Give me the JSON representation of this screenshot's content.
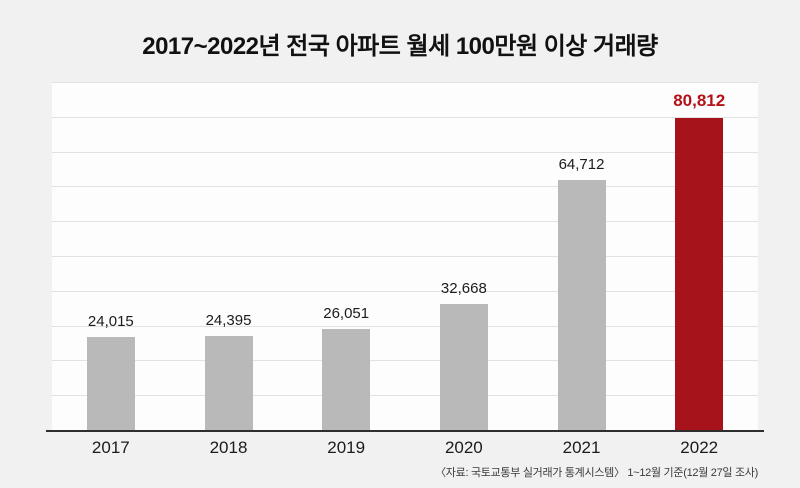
{
  "title": "2017~2022년 전국 아파트 월세 100만원 이상 거래량",
  "source_note": "〈자료: 국토교통부 실거래가 통계시스템〉 1~12월 기준(12월 27일 조사)",
  "colors": {
    "bar_default": "#b9b9b9",
    "bar_highlight": "#a6131b",
    "label_default": "#1c1c1c",
    "label_highlight": "#b3121a",
    "background": "#f1f1f2",
    "gridline": "#e2e2e4",
    "axis_line": "#2e2e2e"
  },
  "chart_data": {
    "type": "bar",
    "title": "2017~2022년 전국 아파트 월세 100만원 이상 거래량",
    "categories": [
      "2017",
      "2018",
      "2019",
      "2020",
      "2021",
      "2022"
    ],
    "values": [
      24015,
      24395,
      26051,
      32668,
      64712,
      80812
    ],
    "value_labels": [
      "24,015",
      "24,395",
      "26,051",
      "32,668",
      "64,712",
      "80,812"
    ],
    "highlight_index": 5,
    "xlabel": "",
    "ylabel": "",
    "ylim": [
      0,
      90000
    ],
    "grid": true,
    "gridline_count": 10,
    "legend_position": "none"
  }
}
